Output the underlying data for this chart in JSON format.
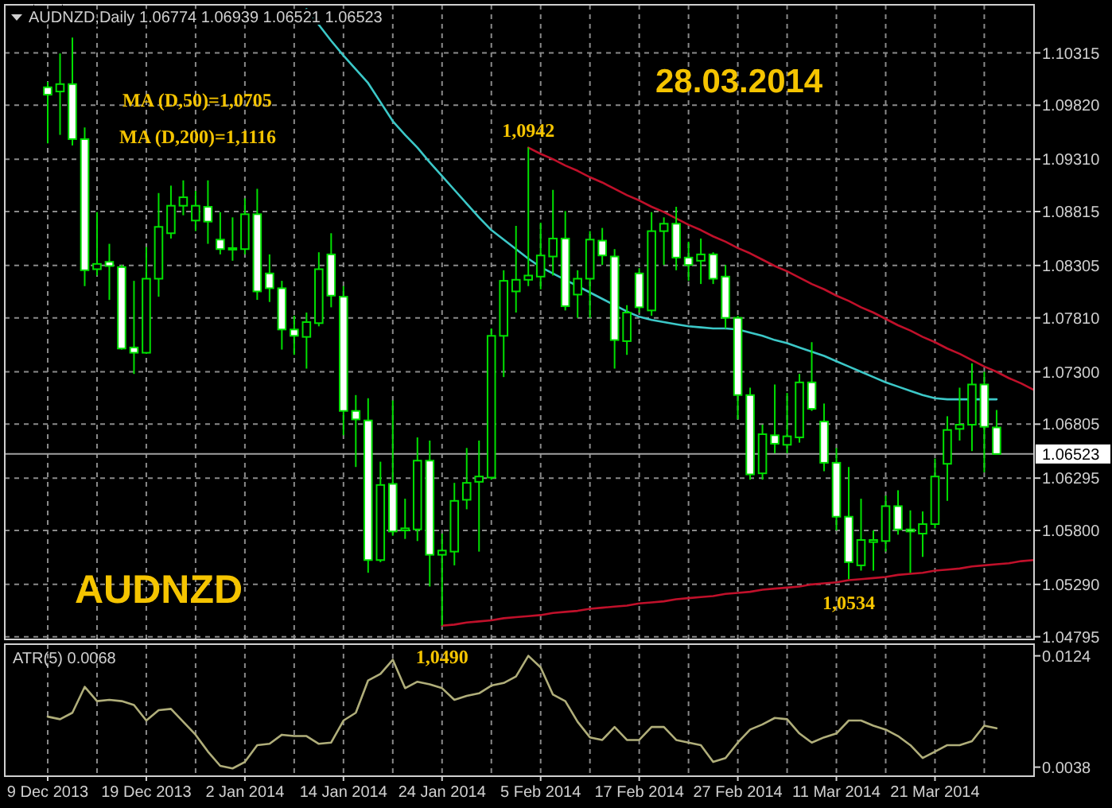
{
  "chart_data": [
    {
      "type": "candlestick",
      "title": "AUDNZD,Daily 1.06774 1.06939 1.06521 1.06523",
      "color": "#00e000",
      "categories": [
        null,
        null,
        null,
        null,
        null,
        null,
        null,
        null,
        null,
        null,
        null,
        null,
        null,
        null,
        null,
        null,
        null,
        null,
        null,
        null,
        null,
        null,
        null,
        null,
        null,
        null,
        null,
        null,
        null,
        null,
        null,
        null,
        null,
        null,
        null,
        null,
        null,
        null,
        null,
        null,
        null,
        null,
        null,
        null,
        null,
        null,
        null,
        null,
        null,
        null,
        null,
        null,
        null,
        null,
        null,
        null,
        null,
        null,
        null,
        null,
        null,
        null,
        null,
        null,
        null,
        null,
        null,
        null,
        null,
        null,
        null,
        null,
        null,
        null,
        null,
        null,
        null,
        null,
        null,
        null,
        null
      ],
      "ohlc": [
        [
          1.0999,
          1.1004,
          1.0946,
          1.0992
        ],
        [
          1.0995,
          1.1031,
          1.0954,
          1.1002
        ],
        [
          1.1002,
          1.1046,
          1.0944,
          1.095
        ],
        [
          1.095,
          1.0961,
          1.0811,
          1.0826
        ],
        [
          1.0827,
          1.0881,
          1.0821,
          1.0832
        ],
        [
          1.0834,
          1.0851,
          1.0798,
          1.083
        ],
        [
          1.0829,
          1.0831,
          1.0751,
          1.0752
        ],
        [
          1.0753,
          1.0816,
          1.0728,
          1.0748
        ],
        [
          1.0748,
          1.0848,
          1.0747,
          1.0818
        ],
        [
          1.0818,
          1.0899,
          1.0801,
          1.0867
        ],
        [
          1.0861,
          1.0906,
          1.0856,
          1.0887
        ],
        [
          1.0887,
          1.0911,
          1.0878,
          1.0895
        ],
        [
          1.0873,
          1.0901,
          1.0863,
          1.0887
        ],
        [
          1.0886,
          1.0911,
          1.0851,
          1.0872
        ],
        [
          1.0855,
          1.0881,
          1.0841,
          1.0846
        ],
        [
          1.0847,
          1.0876,
          1.0835,
          1.0846
        ],
        [
          1.0846,
          1.0894,
          1.0841,
          1.0879
        ],
        [
          1.0879,
          1.0903,
          1.0798,
          1.0806
        ],
        [
          1.0823,
          1.0841,
          1.0796,
          1.0809
        ],
        [
          1.0809,
          1.0816,
          1.0751,
          1.077
        ],
        [
          1.077,
          1.0783,
          1.0746,
          1.0764
        ],
        [
          1.0763,
          1.0786,
          1.0733,
          1.0777
        ],
        [
          1.0776,
          1.0843,
          1.0773,
          1.0827
        ],
        [
          1.0841,
          1.0861,
          1.0791,
          1.0802
        ],
        [
          1.0801,
          1.0811,
          1.067,
          1.0693
        ],
        [
          1.0693,
          1.0708,
          1.064,
          1.0685
        ],
        [
          1.0684,
          1.0705,
          1.054,
          1.0552
        ],
        [
          1.0552,
          1.0645,
          1.055,
          1.0623
        ],
        [
          1.0624,
          1.0703,
          1.0575,
          1.0579
        ],
        [
          1.058,
          1.061,
          1.0572,
          1.0582
        ],
        [
          1.0581,
          1.0668,
          1.057,
          1.0646
        ],
        [
          1.0646,
          1.0665,
          1.0527,
          1.0557
        ],
        [
          1.0557,
          1.0577,
          1.049,
          1.0561
        ],
        [
          1.056,
          1.0625,
          1.0547,
          1.0608
        ],
        [
          1.0609,
          1.0658,
          1.06,
          1.0625
        ],
        [
          1.0626,
          1.0665,
          1.056,
          1.0631
        ],
        [
          1.063,
          1.0771,
          1.0628,
          1.0764
        ],
        [
          1.0764,
          1.0826,
          1.0725,
          1.0816
        ],
        [
          1.0806,
          1.0868,
          1.0786,
          1.0817
        ],
        [
          1.0817,
          1.0942,
          1.0811,
          1.0821
        ],
        [
          1.082,
          1.0871,
          1.0808,
          1.084
        ],
        [
          1.0839,
          1.0902,
          1.0821,
          1.0856
        ],
        [
          1.0856,
          1.0882,
          1.0788,
          1.0792
        ],
        [
          1.0803,
          1.0826,
          1.0781,
          1.0818
        ],
        [
          1.0818,
          1.0863,
          1.0781,
          1.0855
        ],
        [
          1.0854,
          1.0866,
          1.0831,
          1.084
        ],
        [
          1.0839,
          1.0846,
          1.0733,
          1.076
        ],
        [
          1.0759,
          1.0793,
          1.0746,
          1.0786
        ],
        [
          1.0823,
          1.0828,
          1.0786,
          1.0791
        ],
        [
          1.0788,
          1.0881,
          1.0783,
          1.0863
        ],
        [
          1.0863,
          1.0876,
          1.0831,
          1.087
        ],
        [
          1.087,
          1.0886,
          1.0826,
          1.0838
        ],
        [
          1.0838,
          1.0853,
          1.0816,
          1.0831
        ],
        [
          1.0835,
          1.0856,
          1.0813,
          1.0841
        ],
        [
          1.0841,
          1.0843,
          1.0813,
          1.0818
        ],
        [
          1.082,
          1.0831,
          1.0771,
          1.0781
        ],
        [
          1.0781,
          1.0783,
          1.0685,
          1.0708
        ],
        [
          1.0708,
          1.0715,
          1.0628,
          1.0633
        ],
        [
          1.0634,
          1.068,
          1.0628,
          1.0671
        ],
        [
          1.067,
          1.0718,
          1.0653,
          1.0662
        ],
        [
          1.0661,
          1.071,
          1.0653,
          1.0669
        ],
        [
          1.0668,
          1.0728,
          1.0663,
          1.072
        ],
        [
          1.072,
          1.0758,
          1.0693,
          1.0695
        ],
        [
          1.0683,
          1.07,
          1.0636,
          1.0644
        ],
        [
          1.0644,
          1.0658,
          1.058,
          1.0593
        ],
        [
          1.0593,
          1.064,
          1.0534,
          1.055
        ],
        [
          1.0547,
          1.061,
          1.0542,
          1.0571
        ],
        [
          1.0569,
          1.058,
          1.0542,
          1.0571
        ],
        [
          1.057,
          1.0613,
          1.056,
          1.0603
        ],
        [
          1.0603,
          1.0618,
          1.0576,
          1.0581
        ],
        [
          1.0581,
          1.0599,
          1.054,
          1.0579
        ],
        [
          1.0577,
          1.0598,
          1.0555,
          1.0586
        ],
        [
          1.0586,
          1.0648,
          1.0582,
          1.0631
        ],
        [
          1.0643,
          1.0688,
          1.0608,
          1.0675
        ],
        [
          1.0676,
          1.0715,
          1.0665,
          1.068
        ],
        [
          1.068,
          1.0738,
          1.0655,
          1.0718
        ],
        [
          1.0718,
          1.073,
          1.0635,
          1.0678
        ],
        [
          1.06774,
          1.06939,
          1.06521,
          1.06523
        ],
        null,
        null,
        null
      ],
      "series": [
        {
          "type": "line",
          "color": "#3cc8c8",
          "values": [
            null,
            null,
            null,
            null,
            null,
            null,
            null,
            null,
            null,
            null,
            null,
            null,
            null,
            null,
            null,
            null,
            null,
            null,
            null,
            null,
            null,
            1.1073,
            1.1058,
            1.1043,
            1.1029,
            1.1016,
            1.1003,
            1.0985,
            1.0967,
            1.0954,
            1.0942,
            1.0928,
            1.0915,
            1.0902,
            1.0889,
            1.0876,
            1.0864,
            1.0855,
            1.0846,
            1.0837,
            1.0829,
            1.0823,
            1.0817,
            1.0811,
            1.0805,
            1.0799,
            1.0793,
            1.0787,
            1.0782,
            1.0779,
            1.0777,
            1.0775,
            1.0773,
            1.0772,
            1.0771,
            1.0771,
            1.077,
            1.0767,
            1.0764,
            1.076,
            1.0757,
            1.0753,
            1.0749,
            1.0745,
            1.074,
            1.0735,
            1.073,
            1.0725,
            1.072,
            1.0716,
            1.0712,
            1.0708,
            1.0705,
            1.0704,
            1.0704,
            1.0704,
            1.0704,
            1.0704,
            null,
            null,
            null
          ]
        },
        {
          "type": "line",
          "color": "#c0102a",
          "values": [
            null,
            null,
            null,
            null,
            null,
            null,
            null,
            null,
            null,
            null,
            null,
            null,
            null,
            null,
            null,
            null,
            null,
            null,
            null,
            null,
            null,
            null,
            null,
            null,
            null,
            null,
            null,
            null,
            null,
            null,
            null,
            null,
            null,
            null,
            null,
            null,
            null,
            null,
            null,
            1.0942,
            1.0936,
            1.0931,
            1.0925,
            1.092,
            1.0914,
            1.0909,
            1.0903,
            1.0897,
            1.0892,
            1.0886,
            1.0881,
            1.0875,
            1.0869,
            1.0864,
            1.0858,
            1.0853,
            1.0847,
            1.0842,
            1.0836,
            1.083,
            1.0825,
            1.0819,
            1.0813,
            1.0808,
            1.0802,
            1.0797,
            1.0791,
            1.0786,
            1.078,
            1.0774,
            1.0769,
            1.0763,
            1.0758,
            1.0752,
            1.0747,
            1.0741,
            1.0735,
            1.073,
            1.0724,
            1.0719,
            1.0713
          ]
        },
        {
          "type": "line",
          "color": "#c0102a",
          "values": [
            null,
            null,
            null,
            null,
            null,
            null,
            null,
            null,
            null,
            null,
            null,
            null,
            null,
            null,
            null,
            null,
            null,
            null,
            null,
            null,
            null,
            null,
            null,
            null,
            null,
            null,
            null,
            null,
            null,
            null,
            null,
            null,
            1.049,
            1.0491,
            1.0493,
            1.0494,
            1.0495,
            1.0497,
            1.0498,
            1.0499,
            1.05,
            1.0502,
            1.0503,
            1.0504,
            1.0506,
            1.0507,
            1.0508,
            1.0509,
            1.0511,
            1.0512,
            1.0513,
            1.0515,
            1.0516,
            1.0517,
            1.0518,
            1.052,
            1.0521,
            1.0522,
            1.0524,
            1.0525,
            1.0526,
            1.0527,
            1.0529,
            1.053,
            1.0531,
            1.0533,
            1.0534,
            1.0535,
            1.0536,
            1.0538,
            1.0539,
            1.054,
            1.0542,
            1.0543,
            1.0544,
            1.0546,
            1.0547,
            1.0548,
            1.0549,
            1.0551,
            1.0552
          ]
        }
      ],
      "annotations": [
        "MA (D,50)=1,0705",
        "MA (D,200)=1,1116",
        "28.03.2014",
        "AUDNZD",
        {
          "text": "1,0942",
          "y": 1.0942
        },
        {
          "text": "1,0534",
          "y": 1.0534
        },
        {
          "text": "1,0490",
          "y": 1.049
        }
      ],
      "ref_lines": [
        {
          "axis": "y",
          "value": 1.06523,
          "label": "1.06523",
          "color": "#a0a0a0"
        }
      ],
      "ylim": [
        1.0477,
        1.1077
      ],
      "yticks": [
        1.10315,
        {
          "value": 1.0982,
          "label": "1.09820"
        },
        {
          "value": 1.0931,
          "label": "1.09310"
        },
        1.08815,
        1.08305,
        {
          "value": 1.0781,
          "label": "1.07810"
        },
        {
          "value": 1.073,
          "label": "1.07300"
        },
        1.06805,
        1.06295,
        {
          "value": 1.058,
          "label": "1.05800"
        },
        {
          "value": 1.0529,
          "label": "1.05290"
        },
        1.04795
      ],
      "grid": true,
      "tick_labels": "y"
    },
    {
      "type": "line",
      "title": "ATR(5) 0.0068",
      "color": "#b0ae7a",
      "categories": [
        "9 Dec 2013",
        null,
        null,
        null,
        null,
        null,
        null,
        null,
        "19 Dec 2013",
        null,
        null,
        null,
        null,
        null,
        null,
        null,
        "2 Jan 2014",
        null,
        null,
        null,
        null,
        null,
        null,
        null,
        "14 Jan 2014",
        null,
        null,
        null,
        null,
        null,
        null,
        null,
        "24 Jan 2014",
        null,
        null,
        null,
        null,
        null,
        null,
        null,
        "5 Feb 2014",
        null,
        null,
        null,
        null,
        null,
        null,
        null,
        "17 Feb 2014",
        null,
        null,
        null,
        null,
        null,
        null,
        null,
        "27 Feb 2014",
        null,
        null,
        null,
        null,
        null,
        null,
        null,
        "11 Mar 2014",
        null,
        null,
        null,
        null,
        null,
        null,
        null,
        "21 Mar 2014",
        null,
        null,
        null,
        null,
        null,
        null,
        null,
        null
      ],
      "values": [
        0.0077,
        0.0075,
        0.008,
        0.01,
        0.0089,
        0.009,
        0.0089,
        0.0086,
        0.0074,
        0.0082,
        0.0083,
        0.0073,
        0.0063,
        0.005,
        0.0039,
        0.0037,
        0.0042,
        0.0055,
        0.0056,
        0.0063,
        0.0062,
        0.0062,
        0.0056,
        0.0057,
        0.0074,
        0.008,
        0.0105,
        0.011,
        0.0121,
        0.0099,
        0.0104,
        0.0102,
        0.0099,
        0.009,
        0.0093,
        0.0095,
        0.0101,
        0.0103,
        0.0108,
        0.0124,
        0.0115,
        0.0094,
        0.0089,
        0.0073,
        0.0061,
        0.0059,
        0.0069,
        0.0059,
        0.0059,
        0.0069,
        0.0069,
        0.0059,
        0.0057,
        0.0055,
        0.0042,
        0.0045,
        0.0057,
        0.0067,
        0.0071,
        0.0076,
        0.0075,
        0.0064,
        0.0057,
        0.0061,
        0.0064,
        0.0074,
        0.0074,
        0.007,
        0.0067,
        0.0062,
        0.0055,
        0.0045,
        0.005,
        0.0055,
        0.0055,
        0.0058,
        0.007,
        0.0068,
        null,
        null,
        null
      ],
      "ylim": [
        0.0031,
        0.0133
      ],
      "yticks": [
        0.0124,
        0.0038
      ],
      "grid": "x"
    }
  ]
}
